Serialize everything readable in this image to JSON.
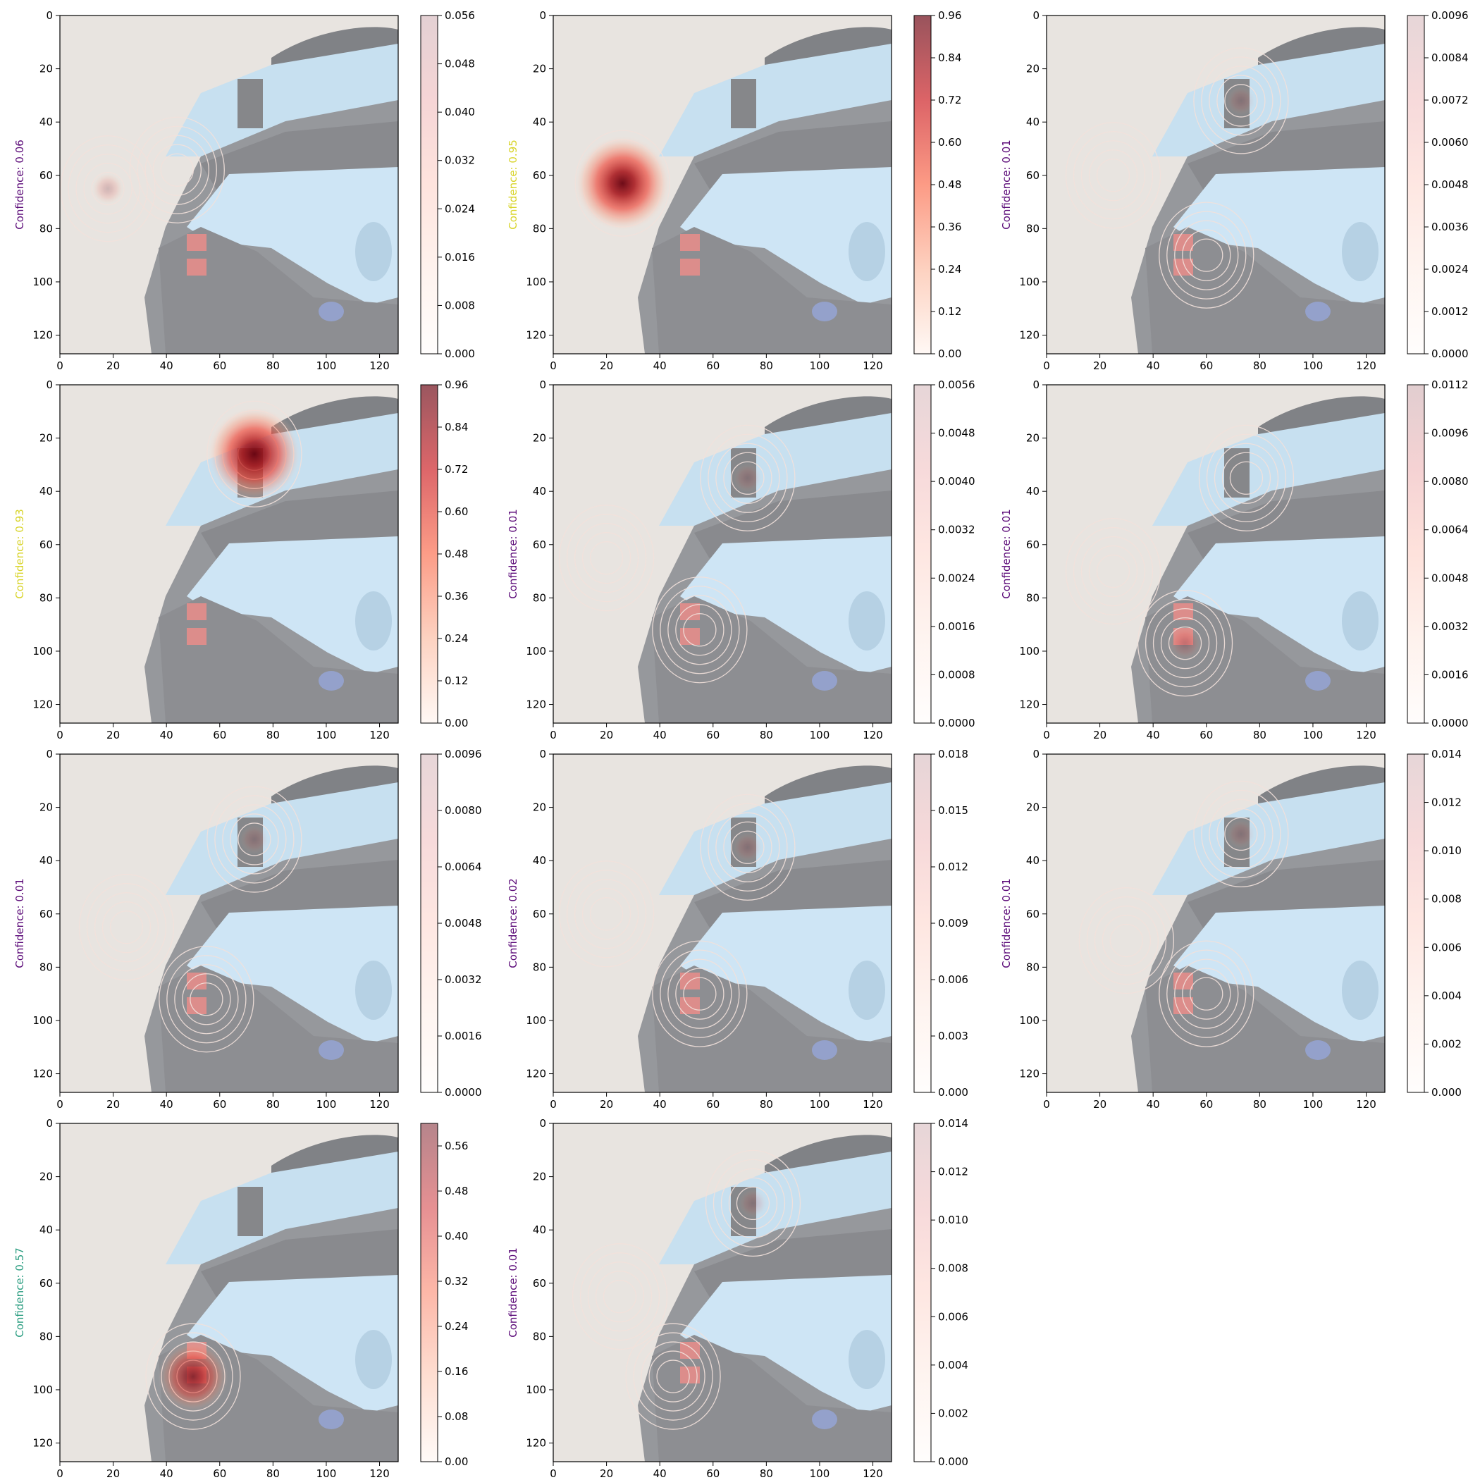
{
  "figure": {
    "background": "#ffffff"
  },
  "chart_data": [
    {
      "type": "heatmap",
      "ylabel": "Confidence: 0.06",
      "ylabel_color": "#5b0a78",
      "peak_x": 18,
      "peak_y": 65,
      "intensity": 0.06,
      "contour_regions": [
        [
          18,
          65
        ],
        [
          44,
          58
        ]
      ],
      "xlim": [
        0,
        127
      ],
      "ylim": [
        127,
        0
      ],
      "xticks": [
        0,
        20,
        40,
        60,
        80,
        100,
        120
      ],
      "yticks": [
        0,
        20,
        40,
        60,
        80,
        100,
        120
      ],
      "colorbar": {
        "min": 0,
        "max": 0.056,
        "ticks": [
          "0.000",
          "0.008",
          "0.016",
          "0.024",
          "0.032",
          "0.040",
          "0.048",
          "0.056"
        ]
      }
    },
    {
      "type": "heatmap",
      "ylabel": "Confidence: 0.95",
      "ylabel_color": "#d8d42a",
      "peak_x": 26,
      "peak_y": 63,
      "intensity": 0.95,
      "contour_regions": [
        [
          26,
          63
        ]
      ],
      "xlim": [
        0,
        127
      ],
      "ylim": [
        127,
        0
      ],
      "xticks": [
        0,
        20,
        40,
        60,
        80,
        100,
        120
      ],
      "yticks": [
        0,
        20,
        40,
        60,
        80,
        100,
        120
      ],
      "colorbar": {
        "min": 0,
        "max": 0.96,
        "ticks": [
          "0.00",
          "0.12",
          "0.24",
          "0.36",
          "0.48",
          "0.60",
          "0.72",
          "0.84",
          "0.96"
        ]
      }
    },
    {
      "type": "heatmap",
      "ylabel": "Confidence: 0.01",
      "ylabel_color": "#5b0a78",
      "peak_x": 73,
      "peak_y": 32,
      "intensity": 0.02,
      "contour_regions": [
        [
          73,
          32
        ],
        [
          25,
          60
        ],
        [
          60,
          90
        ]
      ],
      "xlim": [
        0,
        127
      ],
      "ylim": [
        127,
        0
      ],
      "xticks": [
        0,
        20,
        40,
        60,
        80,
        100,
        120
      ],
      "yticks": [
        0,
        20,
        40,
        60,
        80,
        100,
        120
      ],
      "colorbar": {
        "min": 0,
        "max": 0.0096,
        "ticks": [
          "0.0000",
          "0.0012",
          "0.0024",
          "0.0036",
          "0.0048",
          "0.0060",
          "0.0072",
          "0.0084",
          "0.0096"
        ]
      }
    },
    {
      "type": "heatmap",
      "ylabel": "Confidence: 0.93",
      "ylabel_color": "#d8d42a",
      "peak_x": 73,
      "peak_y": 26,
      "intensity": 0.93,
      "contour_regions": [
        [
          73,
          26
        ]
      ],
      "xlim": [
        0,
        127
      ],
      "ylim": [
        127,
        0
      ],
      "xticks": [
        0,
        20,
        40,
        60,
        80,
        100,
        120
      ],
      "yticks": [
        0,
        20,
        40,
        60,
        80,
        100,
        120
      ],
      "colorbar": {
        "min": 0,
        "max": 0.96,
        "ticks": [
          "0.00",
          "0.12",
          "0.24",
          "0.36",
          "0.48",
          "0.60",
          "0.72",
          "0.84",
          "0.96"
        ]
      }
    },
    {
      "type": "heatmap",
      "ylabel": "Confidence: 0.01",
      "ylabel_color": "#5b0a78",
      "peak_x": 73,
      "peak_y": 35,
      "intensity": 0.02,
      "contour_regions": [
        [
          73,
          35
        ],
        [
          20,
          65
        ],
        [
          55,
          92
        ]
      ],
      "xlim": [
        0,
        127
      ],
      "ylim": [
        127,
        0
      ],
      "xticks": [
        0,
        20,
        40,
        60,
        80,
        100,
        120
      ],
      "yticks": [
        0,
        20,
        40,
        60,
        80,
        100,
        120
      ],
      "colorbar": {
        "min": 0,
        "max": 0.0056,
        "ticks": [
          "0.0000",
          "0.0008",
          "0.0016",
          "0.0024",
          "0.0032",
          "0.0040",
          "0.0048",
          "0.0056"
        ]
      }
    },
    {
      "type": "heatmap",
      "ylabel": "Confidence: 0.01",
      "ylabel_color": "#5b0a78",
      "peak_x": 52,
      "peak_y": 97,
      "intensity": 0.08,
      "contour_regions": [
        [
          52,
          97
        ],
        [
          75,
          35
        ],
        [
          25,
          70
        ]
      ],
      "xlim": [
        0,
        127
      ],
      "ylim": [
        127,
        0
      ],
      "xticks": [
        0,
        20,
        40,
        60,
        80,
        100,
        120
      ],
      "yticks": [
        0,
        20,
        40,
        60,
        80,
        100,
        120
      ],
      "colorbar": {
        "min": 0,
        "max": 0.0112,
        "ticks": [
          "0.0000",
          "0.0016",
          "0.0032",
          "0.0048",
          "0.0064",
          "0.0080",
          "0.0096",
          "0.0112"
        ]
      }
    },
    {
      "type": "heatmap",
      "ylabel": "Confidence: 0.01",
      "ylabel_color": "#5b0a78",
      "peak_x": 73,
      "peak_y": 32,
      "intensity": 0.02,
      "contour_regions": [
        [
          73,
          32
        ],
        [
          55,
          92
        ],
        [
          25,
          65
        ]
      ],
      "xlim": [
        0,
        127
      ],
      "ylim": [
        127,
        0
      ],
      "xticks": [
        0,
        20,
        40,
        60,
        80,
        100,
        120
      ],
      "yticks": [
        0,
        20,
        40,
        60,
        80,
        100,
        120
      ],
      "colorbar": {
        "min": 0,
        "max": 0.0096,
        "ticks": [
          "0.0000",
          "0.0016",
          "0.0032",
          "0.0048",
          "0.0064",
          "0.0080",
          "0.0096"
        ]
      }
    },
    {
      "type": "heatmap",
      "ylabel": "Confidence: 0.02",
      "ylabel_color": "#5b0a78",
      "peak_x": 73,
      "peak_y": 35,
      "intensity": 0.03,
      "contour_regions": [
        [
          73,
          35
        ],
        [
          55,
          90
        ],
        [
          20,
          60
        ]
      ],
      "xlim": [
        0,
        127
      ],
      "ylim": [
        127,
        0
      ],
      "xticks": [
        0,
        20,
        40,
        60,
        80,
        100,
        120
      ],
      "yticks": [
        0,
        20,
        40,
        60,
        80,
        100,
        120
      ],
      "colorbar": {
        "min": 0,
        "max": 0.018,
        "ticks": [
          "0.000",
          "0.003",
          "0.006",
          "0.009",
          "0.012",
          "0.015",
          "0.018"
        ]
      }
    },
    {
      "type": "heatmap",
      "ylabel": "Confidence: 0.01",
      "ylabel_color": "#5b0a78",
      "peak_x": 73,
      "peak_y": 30,
      "intensity": 0.02,
      "contour_regions": [
        [
          73,
          30
        ],
        [
          30,
          70
        ],
        [
          60,
          90
        ]
      ],
      "xlim": [
        0,
        127
      ],
      "ylim": [
        127,
        0
      ],
      "xticks": [
        0,
        20,
        40,
        60,
        80,
        100,
        120
      ],
      "yticks": [
        0,
        20,
        40,
        60,
        80,
        100,
        120
      ],
      "colorbar": {
        "min": 0,
        "max": 0.014,
        "ticks": [
          "0.000",
          "0.002",
          "0.004",
          "0.006",
          "0.008",
          "0.010",
          "0.012",
          "0.014"
        ]
      }
    },
    {
      "type": "heatmap",
      "ylabel": "Confidence: 0.57",
      "ylabel_color": "#2a9d80",
      "peak_x": 50,
      "peak_y": 95,
      "intensity": 0.6,
      "contour_regions": [
        [
          50,
          95
        ]
      ],
      "xlim": [
        0,
        127
      ],
      "ylim": [
        127,
        0
      ],
      "xticks": [
        0,
        20,
        40,
        60,
        80,
        100,
        120
      ],
      "yticks": [
        0,
        20,
        40,
        60,
        80,
        100,
        120
      ],
      "colorbar": {
        "min": 0,
        "max": 0.6,
        "ticks": [
          "0.00",
          "0.08",
          "0.16",
          "0.24",
          "0.32",
          "0.40",
          "0.48",
          "0.56"
        ]
      }
    },
    {
      "type": "heatmap",
      "ylabel": "Confidence: 0.01",
      "ylabel_color": "#5b0a78",
      "peak_x": 75,
      "peak_y": 30,
      "intensity": 0.02,
      "contour_regions": [
        [
          75,
          30
        ],
        [
          25,
          65
        ],
        [
          45,
          95
        ]
      ],
      "xlim": [
        0,
        127
      ],
      "ylim": [
        127,
        0
      ],
      "xticks": [
        0,
        20,
        40,
        60,
        80,
        100,
        120
      ],
      "yticks": [
        0,
        20,
        40,
        60,
        80,
        100,
        120
      ],
      "colorbar": {
        "min": 0,
        "max": 0.014,
        "ticks": [
          "0.000",
          "0.002",
          "0.004",
          "0.006",
          "0.008",
          "0.010",
          "0.012",
          "0.014"
        ]
      }
    }
  ]
}
